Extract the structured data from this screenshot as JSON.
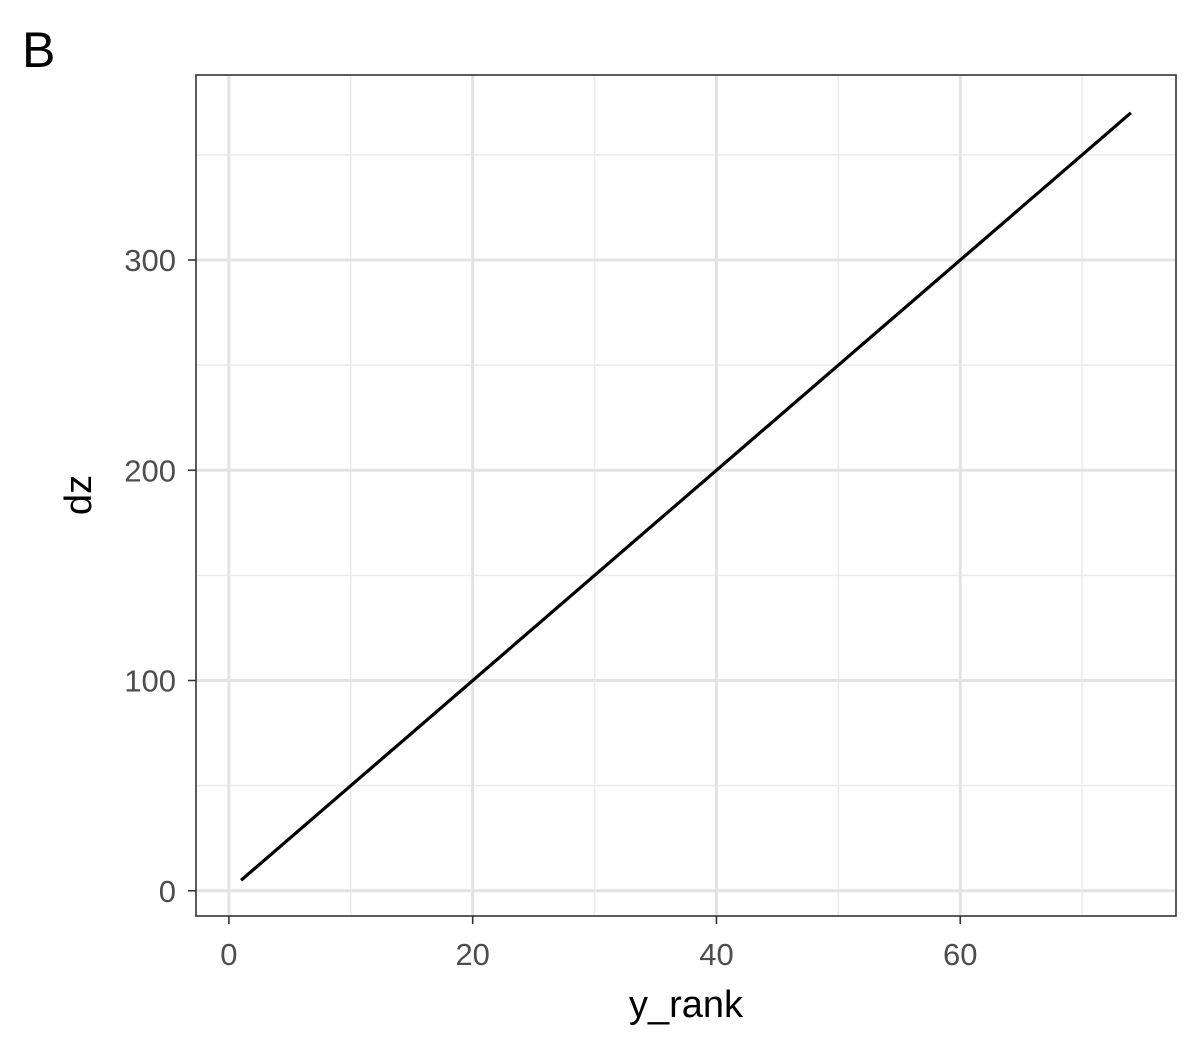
{
  "panel_tag": "B",
  "chart_data": {
    "type": "line",
    "title": "",
    "xlabel": "y_rank",
    "ylabel": "dz",
    "xlim": [
      -2.7,
      77.7
    ],
    "ylim": [
      -12,
      388
    ],
    "x_ticks": [
      0,
      20,
      40,
      60
    ],
    "x_tick_labels": [
      "0",
      "20",
      "40",
      "60"
    ],
    "x_minor_ticks": [
      10,
      30,
      50,
      70
    ],
    "y_ticks": [
      0,
      100,
      200,
      300
    ],
    "y_tick_labels": [
      "0",
      "100",
      "200",
      "300"
    ],
    "y_minor_ticks": [
      50,
      150,
      250,
      350
    ],
    "grid": true,
    "legend": "none",
    "series": [
      {
        "color": "#000000",
        "x": [
          1,
          74
        ],
        "y": [
          5,
          370
        ]
      }
    ]
  }
}
